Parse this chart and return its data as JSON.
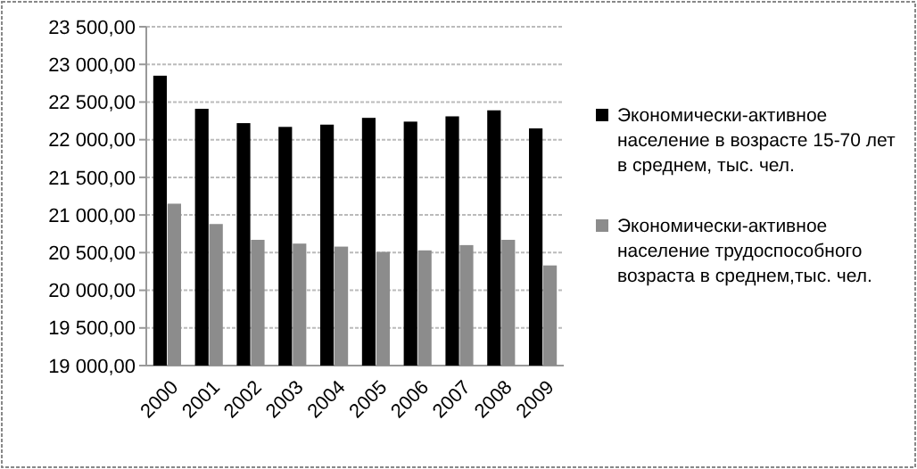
{
  "chart_data": {
    "type": "bar",
    "categories": [
      "2000",
      "2001",
      "2002",
      "2003",
      "2004",
      "2005",
      "2006",
      "2007",
      "2008",
      "2009"
    ],
    "series": [
      {
        "name": "Экономически-активное население в возрасте 15-70 лет в среднем, тыс. чел.",
        "color": "#000000",
        "values": [
          22850,
          22410,
          22220,
          22170,
          22200,
          22290,
          22240,
          22310,
          22390,
          22150
        ]
      },
      {
        "name": "Экономически-активное население трудоспособного возраста в среднем,тыс. чел.",
        "color": "#8c8c8c",
        "values": [
          21150,
          20880,
          20670,
          20620,
          20580,
          20510,
          20530,
          20600,
          20670,
          20330
        ]
      }
    ],
    "ylim": [
      19000,
      23500
    ],
    "yticks": [
      {
        "value": 19000,
        "label": "19 000,00"
      },
      {
        "value": 19500,
        "label": "19 500,00"
      },
      {
        "value": 20000,
        "label": "20 000,00"
      },
      {
        "value": 20500,
        "label": "20 500,00"
      },
      {
        "value": 21000,
        "label": "21 000,00"
      },
      {
        "value": 21500,
        "label": "21 500,00"
      },
      {
        "value": 22000,
        "label": "22 000,00"
      },
      {
        "value": 22500,
        "label": "22 500,00"
      },
      {
        "value": 23000,
        "label": "23 000,00"
      },
      {
        "value": 23500,
        "label": "23 500,00"
      }
    ],
    "grid": "y",
    "legend": "right"
  }
}
